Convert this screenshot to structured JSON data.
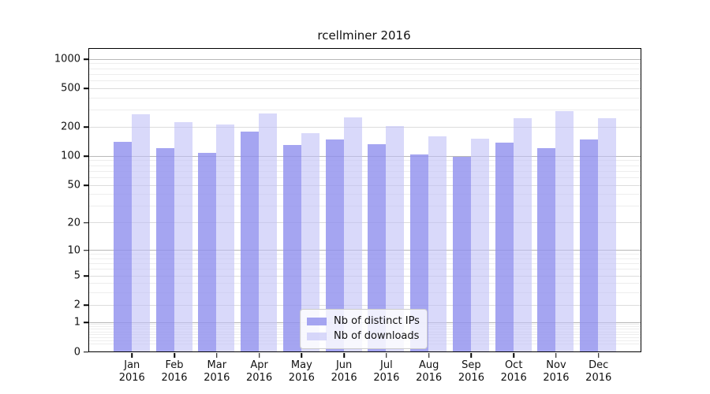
{
  "figure": {
    "title": "rcellminer 2016"
  },
  "chart_data": {
    "type": "bar",
    "title": "rcellminer 2016",
    "categories": [
      "Jan 2016",
      "Feb 2016",
      "Mar 2016",
      "Apr 2016",
      "May 2016",
      "Jun 2016",
      "Jul 2016",
      "Aug 2016",
      "Sep 2016",
      "Oct 2016",
      "Nov 2016",
      "Dec 2016"
    ],
    "x_tick_months": [
      "Jan",
      "Feb",
      "Mar",
      "Apr",
      "May",
      "Jun",
      "Jul",
      "Aug",
      "Sep",
      "Oct",
      "Nov",
      "Dec"
    ],
    "x_tick_year": "2016",
    "series": [
      {
        "name": "Nb of distinct IPs",
        "color": "rgba(142,142,238,0.8)",
        "color_hex": "#a5a5f1",
        "values": [
          140,
          120,
          107,
          180,
          130,
          148,
          131,
          103,
          98,
          136,
          121,
          148
        ]
      },
      {
        "name": "Nb of downloads",
        "color": "rgba(192,192,246,0.6)",
        "color_hex": "#d9d9fa",
        "values": [
          270,
          224,
          213,
          276,
          173,
          252,
          202,
          158,
          152,
          243,
          290,
          246
        ]
      }
    ],
    "yscale": "log1p",
    "ylim": [
      0,
      1263
    ],
    "y_ticks": [
      0,
      1,
      2,
      5,
      10,
      20,
      50,
      100,
      200,
      500,
      1000
    ],
    "y_minor_ticks": [
      0.2,
      0.3,
      0.4,
      0.5,
      0.6,
      0.7,
      0.8,
      0.9,
      3,
      4,
      6,
      7,
      8,
      9,
      30,
      40,
      60,
      70,
      80,
      90,
      300,
      400,
      600,
      700,
      800,
      900
    ],
    "grid": true,
    "legend_position": "lower center inside plot"
  }
}
